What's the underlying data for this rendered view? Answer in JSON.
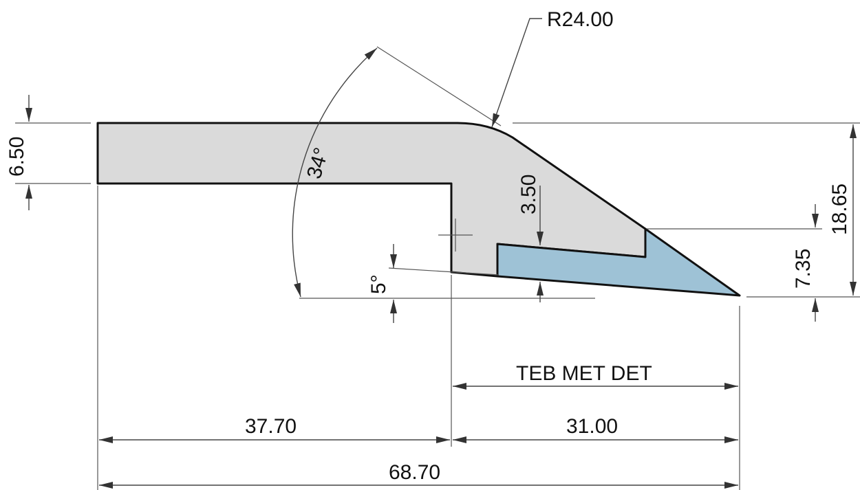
{
  "colors": {
    "body_fill": "#dadada",
    "insert_fill": "#9ec2d6",
    "outline": "#111111",
    "dimension_line": "#555555"
  },
  "dimensions": {
    "radius": "R24.00",
    "angle_top": "34°",
    "angle_bottom": "5°",
    "thickness_left": "6.50",
    "depth_insert": "3.50",
    "height_total": "18.65",
    "height_tip": "7.35",
    "width_left": "37.70",
    "width_right": "31.00",
    "width_total": "68.70",
    "label_region": "TEB MET DET"
  }
}
